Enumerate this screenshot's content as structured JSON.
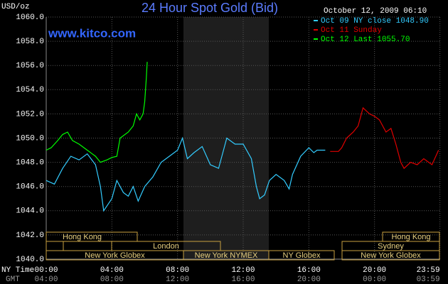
{
  "chart_data": {
    "type": "line",
    "title": "24 Hour Spot Gold (Bid)",
    "timestamp": "October 12, 2009 06:10",
    "watermark": "www.kitco.com",
    "y_label": "USD/oz",
    "x_label": "NY Time",
    "x2_label": "GMT",
    "xlim": [
      0,
      24
    ],
    "ylim": [
      1040,
      1060
    ],
    "xticks": [
      {
        "value": 0,
        "label": "00:00"
      },
      {
        "value": 4,
        "label": "04:00"
      },
      {
        "value": 8,
        "label": "08:00"
      },
      {
        "value": 12,
        "label": "12:00"
      },
      {
        "value": 16,
        "label": "16:00"
      },
      {
        "value": 20,
        "label": "20:00"
      },
      {
        "value": 23.983,
        "label": "23:59"
      }
    ],
    "x2ticks": [
      "04:00",
      "08:00",
      "12:00",
      "16:00",
      "20:00",
      "00:00",
      "03:59"
    ],
    "yticks": [
      {
        "value": 1040,
        "label": "1040.0"
      },
      {
        "value": 1042,
        "label": "1042.0"
      },
      {
        "value": 1044,
        "label": "1044.0"
      },
      {
        "value": 1046,
        "label": "1046.0"
      },
      {
        "value": 1048,
        "label": "1048.0"
      },
      {
        "value": 1050,
        "label": "1050.0"
      },
      {
        "value": 1052,
        "label": "1052.0"
      },
      {
        "value": 1054,
        "label": "1054.0"
      },
      {
        "value": 1056,
        "label": "1056.0"
      },
      {
        "value": 1058,
        "label": "1058.0"
      },
      {
        "value": 1060,
        "label": "1060.0"
      }
    ],
    "grid": true,
    "sessions": [
      "Hong Kong",
      "Hong Kong",
      "London",
      "Sydney",
      "New York Globex",
      "New York NYMEX",
      "NY Globex",
      "New York Globex"
    ],
    "series": [
      {
        "name": "Oct 09 NY close 1048.90",
        "color": "#33ccff",
        "x": [
          0,
          0.5,
          1,
          1.5,
          2,
          2.5,
          3,
          3.3,
          3.5,
          4,
          4.3,
          4.7,
          5,
          5.3,
          5.6,
          6,
          6.5,
          7,
          7.5,
          8,
          8.3,
          8.6,
          9,
          9.5,
          10,
          10.5,
          11,
          11.5,
          12,
          12.5,
          12.8,
          13,
          13.3,
          13.6,
          14,
          14.5,
          14.8,
          15,
          15.5,
          16,
          16.3,
          16.5,
          17
        ],
        "values": [
          1046.5,
          1046.2,
          1047.5,
          1048.5,
          1048.2,
          1048.7,
          1047.8,
          1046.0,
          1044.0,
          1045.0,
          1046.5,
          1045.5,
          1045.2,
          1046.0,
          1044.8,
          1046.0,
          1046.8,
          1048.0,
          1048.5,
          1049.0,
          1050.0,
          1048.3,
          1048.8,
          1049.3,
          1047.8,
          1047.5,
          1050.0,
          1049.5,
          1049.5,
          1048.3,
          1046.0,
          1045.0,
          1045.3,
          1046.5,
          1047.0,
          1046.5,
          1045.8,
          1047.0,
          1048.5,
          1049.2,
          1048.8,
          1049.0,
          1049.0
        ]
      },
      {
        "name": "Oct 11 Sunday",
        "color": "#e00000",
        "x": [
          17.3,
          17.8,
          18,
          18.3,
          18.7,
          19,
          19.3,
          19.7,
          20,
          20.3,
          20.7,
          21,
          21.3,
          21.6,
          21.8,
          22.2,
          22.6,
          23,
          23.5,
          23.9
        ],
        "values": [
          1048.9,
          1048.9,
          1049.2,
          1050.0,
          1050.5,
          1051.0,
          1052.5,
          1052.0,
          1051.8,
          1051.5,
          1050.5,
          1050.8,
          1049.5,
          1048.0,
          1047.5,
          1048.0,
          1047.8,
          1048.3,
          1047.8,
          1049.0
        ]
      },
      {
        "name": "Oct 12 Last 1055.70",
        "color": "#00ff00",
        "x": [
          0,
          0.3,
          0.7,
          1,
          1.3,
          1.6,
          2,
          2.5,
          3,
          3.3,
          3.7,
          4,
          4.3,
          4.5,
          5,
          5.3,
          5.5,
          5.7,
          5.9,
          6,
          6.1,
          6.15
        ],
        "values": [
          1049.0,
          1049.2,
          1049.8,
          1050.3,
          1050.5,
          1049.8,
          1049.5,
          1049.0,
          1048.5,
          1048.0,
          1048.2,
          1048.4,
          1048.5,
          1050.0,
          1050.5,
          1051.0,
          1052.0,
          1051.5,
          1052.0,
          1053.0,
          1055.0,
          1056.3
        ]
      }
    ]
  }
}
